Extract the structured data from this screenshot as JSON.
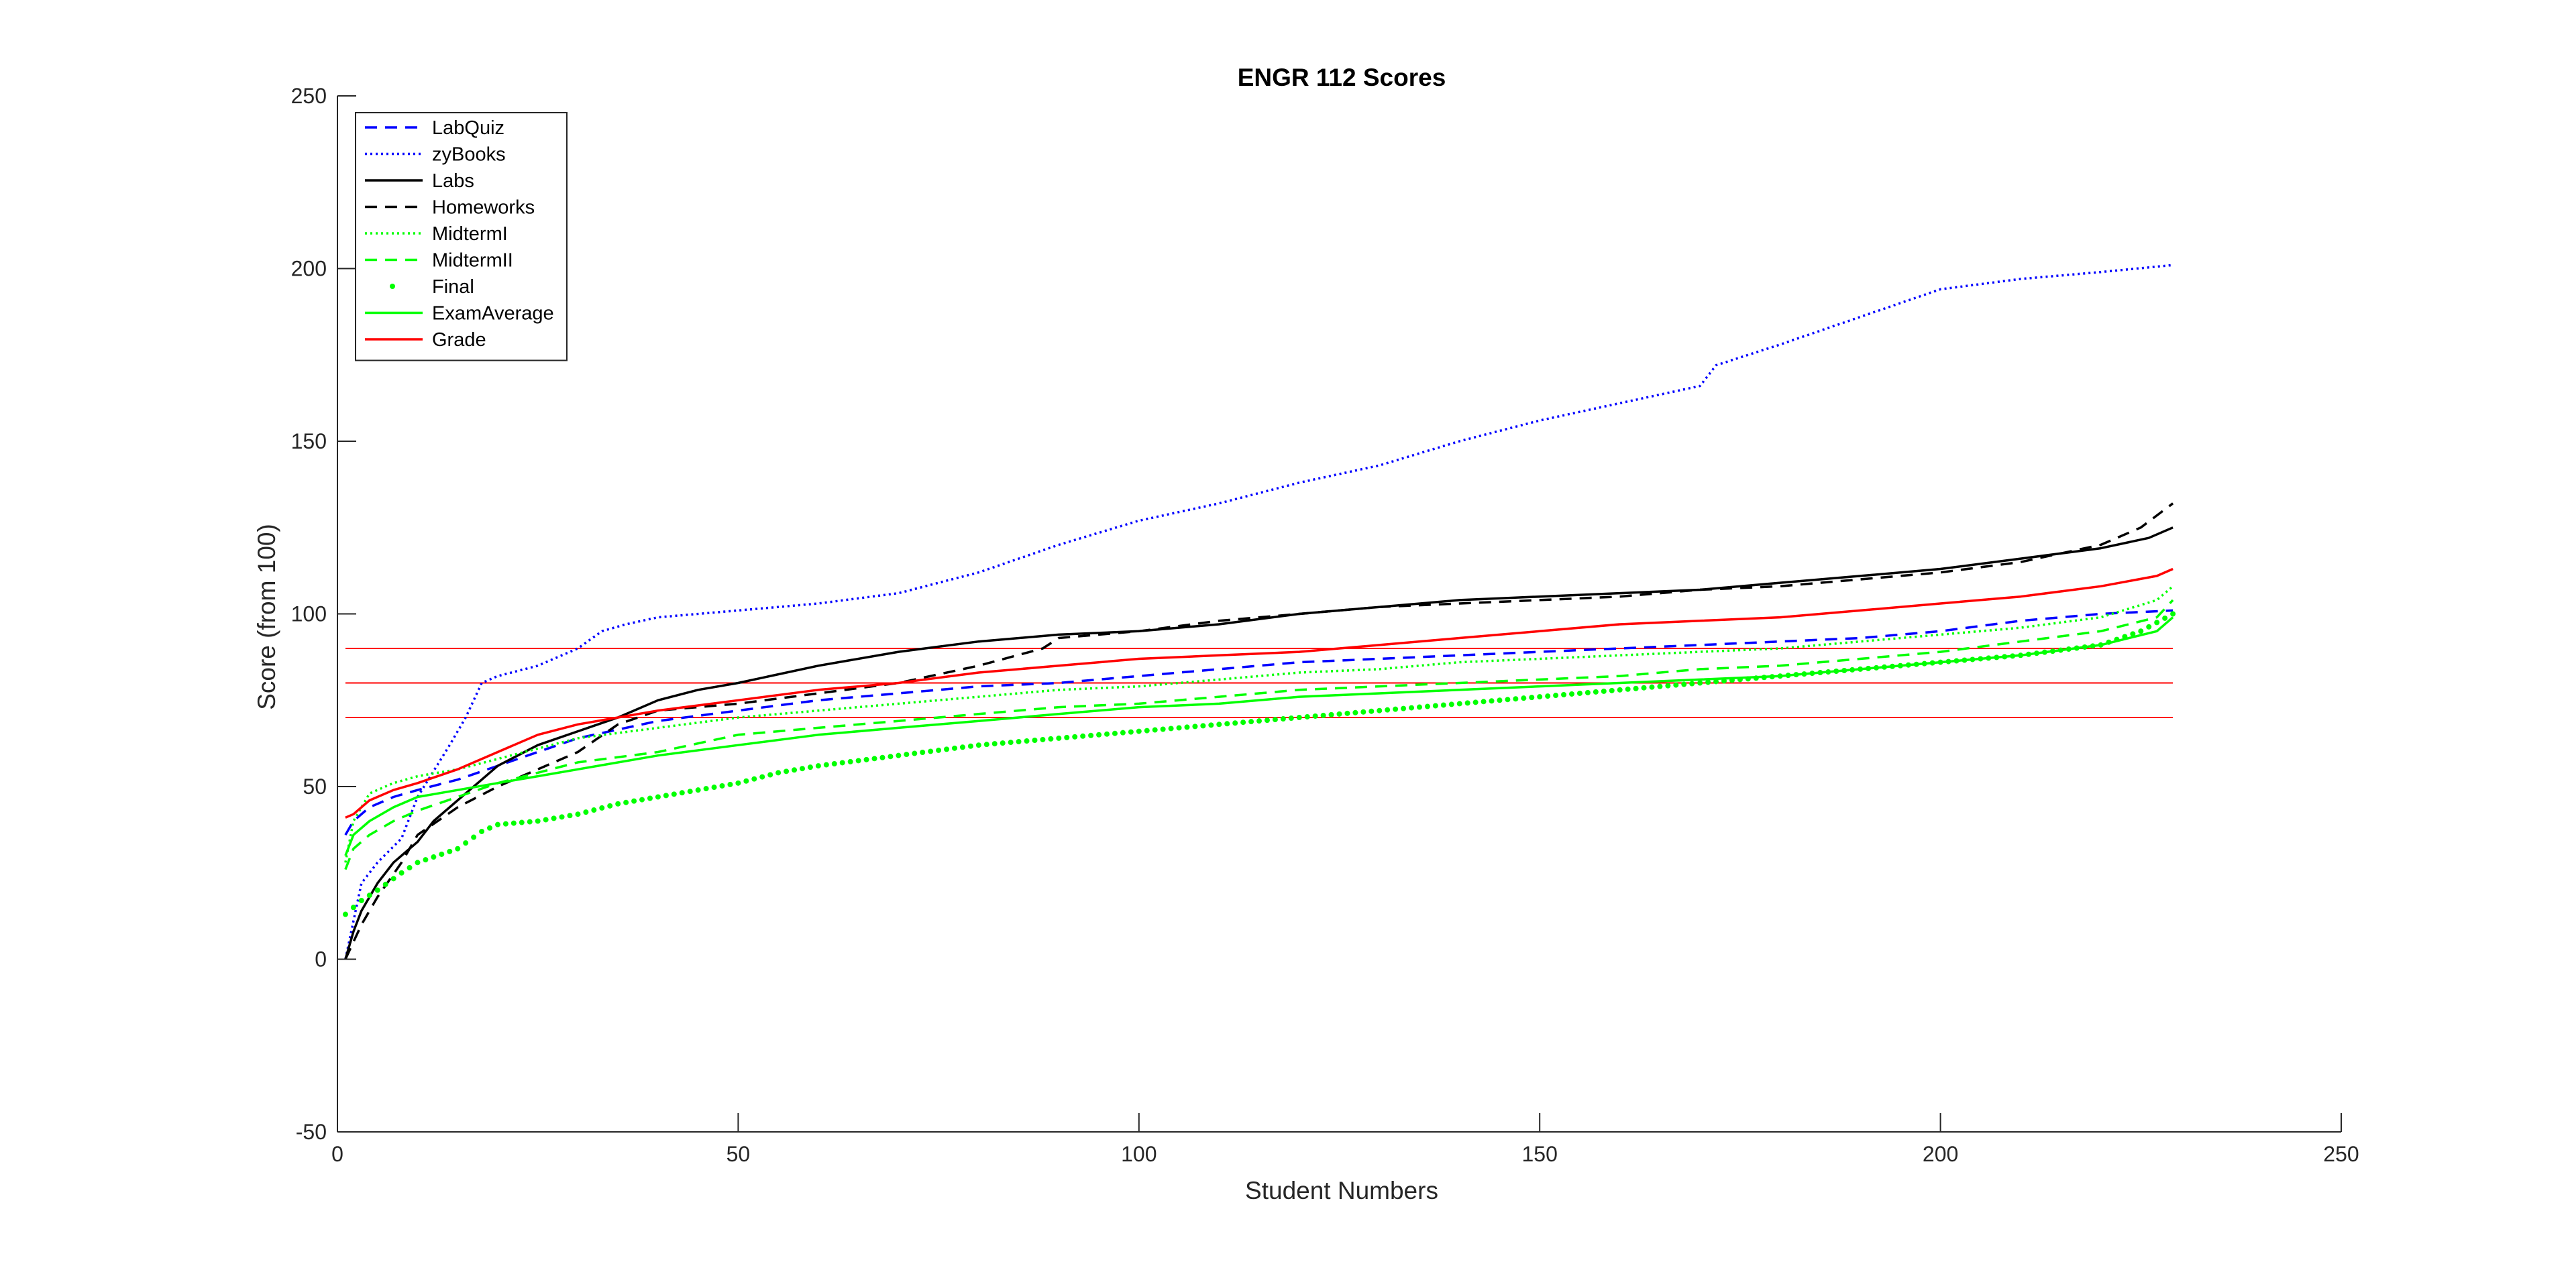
{
  "chart_data": {
    "type": "line",
    "title": "ENGR 112 Scores",
    "xlabel": "Student Numbers",
    "ylabel": "Score (from 100)",
    "xlim": [
      0,
      250
    ],
    "ylim": [
      -50,
      250
    ],
    "xticks": [
      0,
      50,
      100,
      150,
      200,
      250
    ],
    "yticks": [
      -50,
      0,
      50,
      100,
      150,
      200,
      250
    ],
    "grid": false,
    "legend_position": "top-left",
    "reference_lines": [
      {
        "y": 90,
        "color": "#ff0000"
      },
      {
        "y": 80,
        "color": "#ff0000"
      },
      {
        "y": 70,
        "color": "#ff0000"
      }
    ],
    "series": [
      {
        "name": "LabQuiz",
        "color": "#0000ff",
        "style": "dashed",
        "x": [
          1,
          2,
          4,
          7,
          10,
          15,
          20,
          30,
          40,
          50,
          60,
          70,
          80,
          90,
          100,
          110,
          120,
          130,
          140,
          150,
          160,
          170,
          180,
          190,
          200,
          210,
          220,
          229
        ],
        "y": [
          36,
          40,
          44,
          47,
          49,
          52,
          56,
          64,
          69,
          72,
          75,
          77,
          79,
          80,
          82,
          84,
          86,
          87,
          88,
          89,
          90,
          91,
          92,
          93,
          95,
          98,
          100,
          101
        ]
      },
      {
        "name": "zyBooks",
        "color": "#0000ff",
        "style": "dotted",
        "x": [
          1,
          3,
          5,
          8,
          10,
          14,
          16,
          18,
          20,
          25,
          30,
          33,
          36,
          40,
          50,
          60,
          70,
          80,
          90,
          100,
          110,
          120,
          130,
          140,
          150,
          160,
          170,
          172,
          180,
          190,
          200,
          210,
          220,
          229
        ],
        "y": [
          0,
          22,
          28,
          35,
          47,
          62,
          70,
          80,
          82,
          85,
          90,
          95,
          97,
          99,
          101,
          103,
          106,
          112,
          120,
          127,
          132,
          138,
          143,
          150,
          156,
          161,
          166,
          172,
          178,
          186,
          194,
          197,
          199,
          201
        ]
      },
      {
        "name": "Labs",
        "color": "#000000",
        "style": "solid",
        "x": [
          1,
          2,
          3,
          5,
          7,
          10,
          12,
          15,
          18,
          20,
          25,
          30,
          35,
          40,
          45,
          50,
          60,
          70,
          80,
          90,
          100,
          110,
          120,
          130,
          140,
          150,
          160,
          170,
          180,
          190,
          200,
          210,
          220,
          226,
          229
        ],
        "y": [
          0,
          8,
          14,
          22,
          28,
          34,
          40,
          46,
          52,
          56,
          62,
          66,
          70,
          75,
          78,
          80,
          85,
          89,
          92,
          94,
          95,
          97,
          100,
          102,
          104,
          105,
          106,
          107,
          109,
          111,
          113,
          116,
          119,
          122,
          125
        ]
      },
      {
        "name": "Homeworks",
        "color": "#000000",
        "style": "dashed",
        "x": [
          1,
          3,
          5,
          8,
          10,
          15,
          20,
          25,
          30,
          35,
          40,
          50,
          60,
          70,
          80,
          88,
          90,
          100,
          110,
          120,
          130,
          140,
          150,
          160,
          170,
          180,
          190,
          200,
          210,
          220,
          225,
          229
        ],
        "y": [
          0,
          10,
          18,
          28,
          36,
          44,
          50,
          55,
          60,
          68,
          72,
          74,
          77,
          80,
          85,
          90,
          93,
          95,
          98,
          100,
          102,
          103,
          104,
          105,
          107,
          108,
          110,
          112,
          115,
          120,
          125,
          132
        ]
      },
      {
        "name": "MidtermI",
        "color": "#00ff00",
        "style": "dotted",
        "x": [
          1,
          2,
          4,
          7,
          10,
          15,
          20,
          30,
          40,
          50,
          60,
          70,
          80,
          90,
          100,
          110,
          120,
          130,
          140,
          150,
          160,
          170,
          180,
          190,
          200,
          210,
          220,
          227,
          229
        ],
        "y": [
          28,
          40,
          48,
          51,
          53,
          55,
          58,
          64,
          67,
          70,
          72,
          74,
          76,
          78,
          79,
          81,
          83,
          84,
          86,
          87,
          88,
          89,
          90,
          92,
          94,
          96,
          99,
          104,
          108
        ]
      },
      {
        "name": "MidtermII",
        "color": "#00ff00",
        "style": "dashed",
        "x": [
          1,
          2,
          4,
          7,
          10,
          15,
          20,
          30,
          40,
          50,
          60,
          70,
          80,
          90,
          100,
          110,
          120,
          130,
          140,
          150,
          160,
          170,
          180,
          190,
          200,
          210,
          220,
          227,
          229
        ],
        "y": [
          26,
          32,
          36,
          40,
          43,
          47,
          51,
          57,
          60,
          65,
          67,
          69,
          71,
          73,
          74,
          76,
          78,
          79,
          80,
          81,
          82,
          84,
          85,
          87,
          89,
          92,
          95,
          99,
          104
        ]
      },
      {
        "name": "Final",
        "color": "#00ff00",
        "style": "markers",
        "x": [
          1,
          3,
          5,
          8,
          10,
          15,
          18,
          20,
          25,
          30,
          35,
          40,
          45,
          50,
          55,
          60,
          70,
          80,
          90,
          100,
          110,
          120,
          130,
          140,
          150,
          160,
          170,
          180,
          190,
          200,
          210,
          220,
          225,
          229
        ],
        "y": [
          13,
          17,
          20,
          25,
          28,
          32,
          37,
          39,
          40,
          42,
          45,
          47,
          49,
          51,
          54,
          56,
          59,
          62,
          64,
          66,
          68,
          70,
          72,
          74,
          76,
          78,
          80,
          82,
          84,
          86,
          88,
          91,
          95,
          100
        ]
      },
      {
        "name": "ExamAverage",
        "color": "#00ff00",
        "style": "solid",
        "x": [
          1,
          2,
          4,
          7,
          10,
          15,
          20,
          25,
          30,
          40,
          50,
          60,
          70,
          80,
          90,
          100,
          110,
          120,
          130,
          140,
          150,
          160,
          170,
          180,
          190,
          200,
          210,
          220,
          227,
          229
        ],
        "y": [
          30,
          36,
          40,
          44,
          47,
          49,
          51,
          53,
          55,
          59,
          62,
          65,
          67,
          69,
          71,
          73,
          74,
          76,
          77,
          78,
          79,
          80,
          81,
          82,
          84,
          86,
          88,
          91,
          95,
          99
        ]
      },
      {
        "name": "Grade",
        "color": "#ff0000",
        "style": "solid",
        "x": [
          1,
          2,
          4,
          7,
          10,
          15,
          20,
          25,
          30,
          40,
          50,
          60,
          70,
          80,
          90,
          100,
          110,
          120,
          130,
          140,
          150,
          160,
          170,
          180,
          190,
          200,
          210,
          220,
          227,
          229
        ],
        "y": [
          41,
          42,
          46,
          49,
          51,
          55,
          60,
          65,
          68,
          72,
          75,
          78,
          80,
          83,
          85,
          87,
          88,
          89,
          91,
          93,
          95,
          97,
          98,
          99,
          101,
          103,
          105,
          108,
          111,
          113
        ]
      }
    ]
  }
}
